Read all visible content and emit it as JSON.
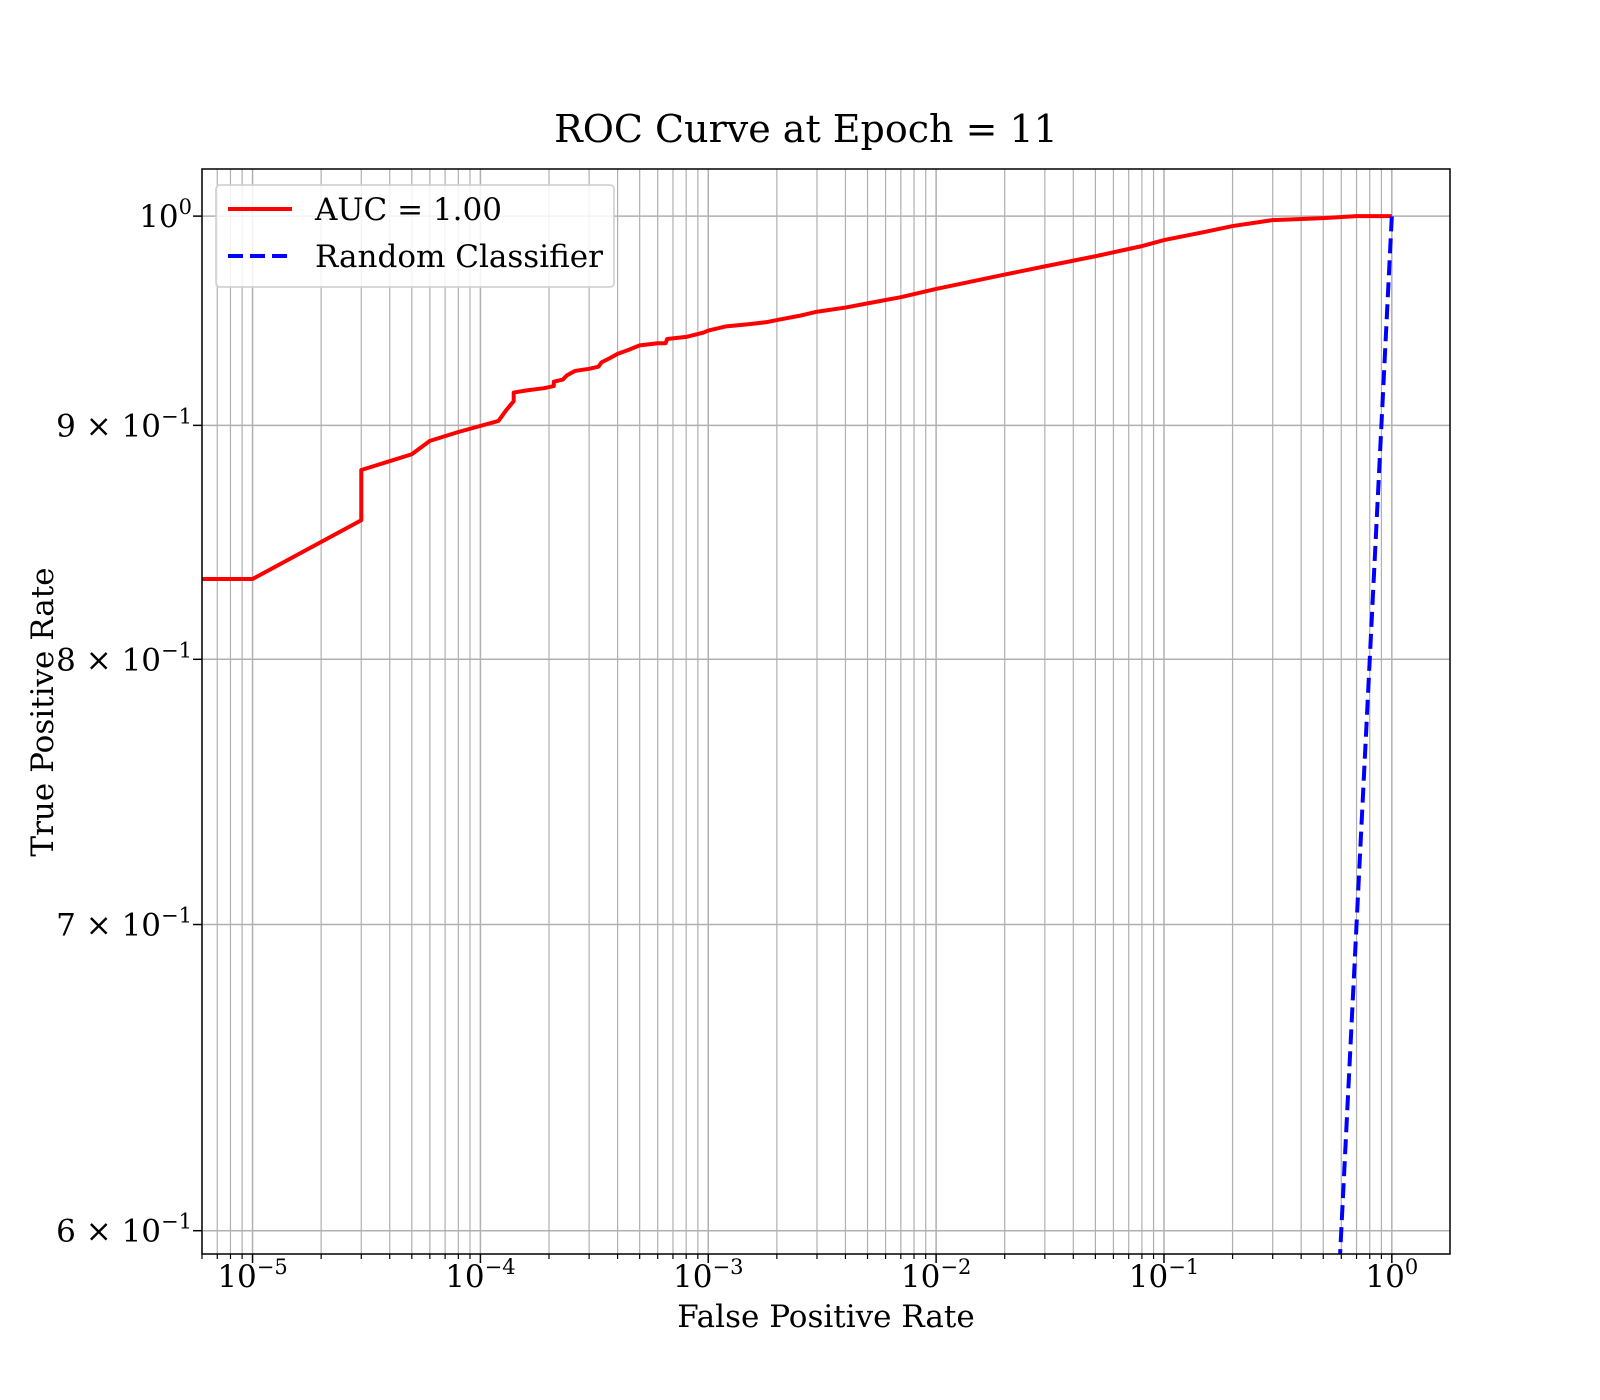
{
  "chart_data": {
    "type": "line",
    "title": "ROC Curve at Epoch = 11",
    "xlabel": "False Positive Rate",
    "ylabel": "True Positive Rate",
    "xscale": "log",
    "yscale": "log",
    "xlim": [
      6e-06,
      1.8
    ],
    "ylim": [
      0.593,
      1.024
    ],
    "grid": "on",
    "legend_position": "top-left",
    "xticks": [
      {
        "value": 1e-05,
        "base": "10",
        "exp": "−5"
      },
      {
        "value": 0.0001,
        "base": "10",
        "exp": "−4"
      },
      {
        "value": 0.001,
        "base": "10",
        "exp": "−3"
      },
      {
        "value": 0.01,
        "base": "10",
        "exp": "−2"
      },
      {
        "value": 0.1,
        "base": "10",
        "exp": "−1"
      },
      {
        "value": 1,
        "base": "10",
        "exp": "0"
      }
    ],
    "yticks": [
      {
        "value": 1.0,
        "base": "10",
        "exp": "0"
      },
      {
        "value": 0.9,
        "base": "9 × 10",
        "exp": "−1"
      },
      {
        "value": 0.8,
        "base": "8 × 10",
        "exp": "−1"
      },
      {
        "value": 0.7,
        "base": "7 × 10",
        "exp": "−1"
      },
      {
        "value": 0.6,
        "base": "6 × 10",
        "exp": "−1"
      }
    ],
    "series": [
      {
        "name": "AUC = 1.00",
        "color": "#ff0000",
        "style": "solid",
        "x": [
          6e-06,
          1e-05,
          3e-05,
          3e-05,
          5e-05,
          6e-05,
          8e-05,
          0.00012,
          0.00013,
          0.00014,
          0.00014,
          0.00016,
          0.00019,
          0.00021,
          0.00021,
          0.00023,
          0.00024,
          0.00026,
          0.0003,
          0.00033,
          0.00034,
          0.00037,
          0.0004,
          0.00045,
          0.0005,
          0.0006,
          0.00065,
          0.00066,
          0.0008,
          0.00095,
          0.001,
          0.0012,
          0.0015,
          0.0018,
          0.002,
          0.0025,
          0.003,
          0.004,
          0.005,
          0.007,
          0.01,
          0.02,
          0.03,
          0.05,
          0.08,
          0.1,
          0.15,
          0.2,
          0.3,
          0.5,
          0.7,
          1.0
        ],
        "y": [
          0.833,
          0.833,
          0.858,
          0.88,
          0.887,
          0.893,
          0.897,
          0.902,
          0.907,
          0.911,
          0.915,
          0.916,
          0.917,
          0.918,
          0.92,
          0.921,
          0.923,
          0.925,
          0.926,
          0.927,
          0.929,
          0.931,
          0.933,
          0.935,
          0.937,
          0.938,
          0.938,
          0.94,
          0.941,
          0.943,
          0.944,
          0.946,
          0.947,
          0.948,
          0.949,
          0.951,
          0.953,
          0.955,
          0.957,
          0.96,
          0.964,
          0.971,
          0.975,
          0.98,
          0.985,
          0.988,
          0.992,
          0.995,
          0.998,
          0.999,
          1.0,
          1.0
        ]
      },
      {
        "name": "Random Classifier",
        "color": "#0000ff",
        "style": "dashed",
        "x": [
          0.59,
          0.8,
          1.0
        ],
        "y": [
          0.59,
          0.8,
          1.0
        ]
      }
    ]
  }
}
